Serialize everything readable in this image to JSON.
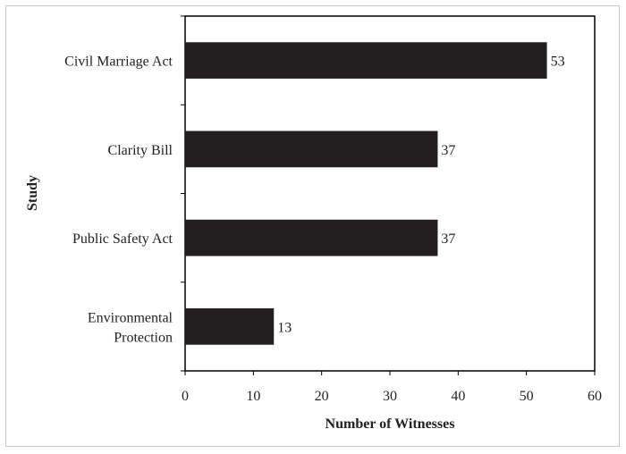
{
  "chart_data": {
    "type": "bar",
    "orientation": "horizontal",
    "title": "",
    "xlabel": "Number of Witnesses",
    "ylabel": "Study",
    "categories": [
      [
        "Civil Marriage Act"
      ],
      [
        "Clarity Bill"
      ],
      [
        "Public Safety Act"
      ],
      [
        "Environmental",
        "Protection"
      ]
    ],
    "values": [
      53,
      37,
      37,
      13
    ],
    "xlim": [
      0,
      60
    ],
    "xticks": [
      0,
      10,
      20,
      30,
      40,
      50,
      60
    ],
    "grid": false,
    "legend": "none",
    "bar_color": "#231f20"
  }
}
